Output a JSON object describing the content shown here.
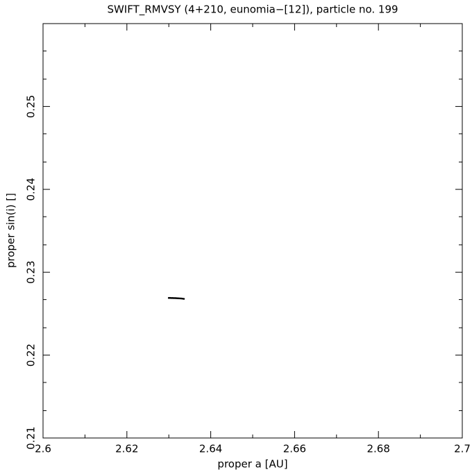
{
  "chart_data": {
    "type": "scatter",
    "title": "SWIFT_RMVSY (4+210, eunomia−[12]), particle no. 199",
    "x_label": "proper a [AU]",
    "y_label": "proper sin(i) []",
    "xlim": [
      2.6,
      2.7
    ],
    "ylim": [
      0.21,
      0.26
    ],
    "xticks": [
      2.6,
      2.62,
      2.64,
      2.66,
      2.68,
      2.7
    ],
    "yticks": [
      0.21,
      0.22,
      0.23,
      0.24,
      0.25
    ],
    "xminorticks": [
      2.61,
      2.63,
      2.65,
      2.67,
      2.69
    ],
    "yminorticks": [
      0.2133,
      0.2167,
      0.2233,
      0.2267,
      0.2333,
      0.2367,
      0.2433,
      0.2467,
      0.2533,
      0.2567
    ],
    "color": "#000000",
    "x": [
      2.63,
      2.6303,
      2.6306,
      2.6309,
      2.6312,
      2.6315,
      2.6318,
      2.6321,
      2.6324,
      2.6327,
      2.633,
      2.6333,
      2.6336
    ],
    "y": [
      0.2269,
      0.2269,
      0.22689,
      0.22689,
      0.22688,
      0.22688,
      0.22687,
      0.22686,
      0.22685,
      0.22684,
      0.22683,
      0.22681,
      0.22679
    ]
  }
}
